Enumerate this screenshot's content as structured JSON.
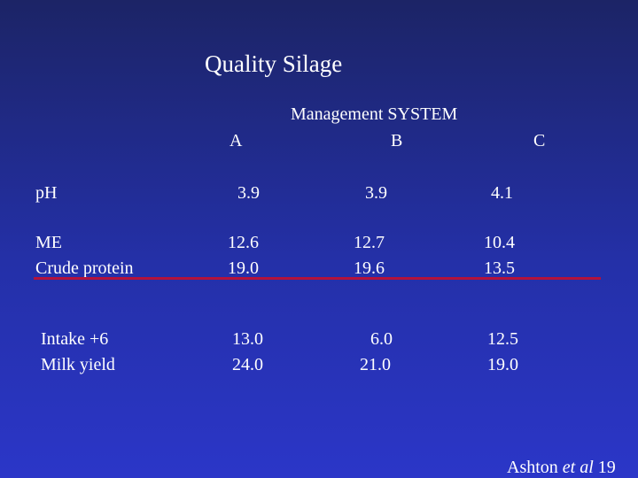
{
  "title": "Quality Silage",
  "table": {
    "group_header": "Management SYSTEM",
    "columns": [
      "A",
      "B",
      "C"
    ],
    "rows": [
      {
        "label": "pH",
        "values": [
          "3.9",
          "3.9",
          "4.1"
        ]
      },
      {
        "label": "ME",
        "values": [
          "12.6",
          "12.7",
          "10.4"
        ]
      },
      {
        "label": "Crude protein",
        "values": [
          "19.0",
          "19.6",
          "13.5"
        ]
      },
      {
        "label": "Intake +6",
        "values": [
          "13.0",
          "6.0",
          "12.5"
        ]
      },
      {
        "label": "Milk yield",
        "values": [
          "24.0",
          "21.0",
          "19.0"
        ]
      }
    ]
  },
  "credit": {
    "author": "Ashton",
    "etal": "et al",
    "year": "19"
  },
  "colors": {
    "background": "#2430a8",
    "rule": "#b3123c",
    "text": "#ffffff"
  }
}
